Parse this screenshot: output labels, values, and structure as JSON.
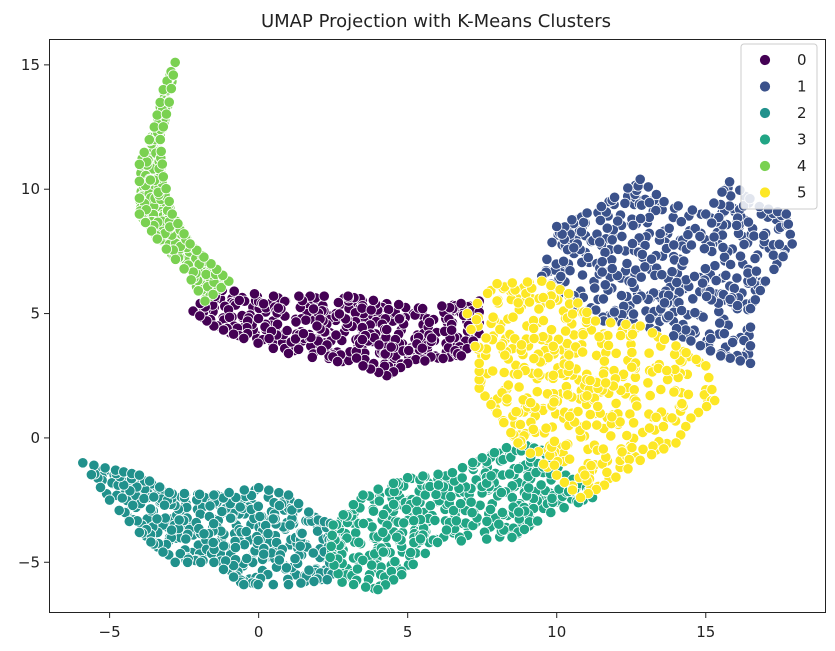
{
  "chart_data": {
    "type": "scatter",
    "title": "UMAP Projection with K-Means Clusters",
    "xlabel": "",
    "ylabel": "",
    "xlim": [
      -7,
      19
    ],
    "ylim": [
      -7,
      16
    ],
    "x_ticks": [
      -5,
      0,
      5,
      10,
      15
    ],
    "y_ticks": [
      -5,
      0,
      5,
      10,
      15
    ],
    "grid": false,
    "legend_position": "top-right",
    "series": [
      {
        "name": "0",
        "color": "#440154",
        "outline": [
          [
            -2.2,
            5.1
          ],
          [
            -1.5,
            6.0
          ],
          [
            0.5,
            5.7
          ],
          [
            3.0,
            5.7
          ],
          [
            5.5,
            5.2
          ],
          [
            7.4,
            5.5
          ],
          [
            7.4,
            4.2
          ],
          [
            6.8,
            3.3
          ],
          [
            5.0,
            3.0
          ],
          [
            4.3,
            2.5
          ],
          [
            3.5,
            2.9
          ],
          [
            1.0,
            3.4
          ],
          [
            -0.5,
            4.0
          ],
          [
            -1.5,
            4.5
          ]
        ]
      },
      {
        "name": "1",
        "color": "#3b528b",
        "outline": [
          [
            9.5,
            6.5
          ],
          [
            10.0,
            8.5
          ],
          [
            11.5,
            9.3
          ],
          [
            12.8,
            10.4
          ],
          [
            13.6,
            9.5
          ],
          [
            15.0,
            9.0
          ],
          [
            15.8,
            10.3
          ],
          [
            16.8,
            9.3
          ],
          [
            17.7,
            9.0
          ],
          [
            17.9,
            7.8
          ],
          [
            17.0,
            6.3
          ],
          [
            16.5,
            5.2
          ],
          [
            16.5,
            3.0
          ],
          [
            15.5,
            3.3
          ],
          [
            14.5,
            3.9
          ],
          [
            12.8,
            4.5
          ],
          [
            11.0,
            4.8
          ],
          [
            10.5,
            5.5
          ]
        ]
      },
      {
        "name": "2",
        "color": "#21918c",
        "outline": [
          [
            -5.9,
            -1.0
          ],
          [
            -4.8,
            -1.3
          ],
          [
            -4.0,
            -1.5
          ],
          [
            -3.0,
            -2.2
          ],
          [
            -1.5,
            -2.3
          ],
          [
            0.0,
            -2.0
          ],
          [
            1.0,
            -2.3
          ],
          [
            2.0,
            -3.3
          ],
          [
            2.6,
            -3.5
          ],
          [
            2.8,
            -5.0
          ],
          [
            2.3,
            -5.7
          ],
          [
            1.0,
            -5.9
          ],
          [
            -0.5,
            -5.9
          ],
          [
            -1.5,
            -5.0
          ],
          [
            -2.8,
            -5.0
          ],
          [
            -4.0,
            -3.8
          ],
          [
            -5.0,
            -2.5
          ]
        ]
      },
      {
        "name": "3",
        "color": "#21a585",
        "outline": [
          [
            2.5,
            -3.5
          ],
          [
            3.5,
            -2.3
          ],
          [
            5.0,
            -1.6
          ],
          [
            6.5,
            -1.4
          ],
          [
            7.5,
            -0.8
          ],
          [
            8.7,
            -0.2
          ],
          [
            9.5,
            -0.5
          ],
          [
            10.3,
            -1.5
          ],
          [
            11.0,
            -2.0
          ],
          [
            11.2,
            -2.4
          ],
          [
            9.8,
            -3.0
          ],
          [
            8.5,
            -4.0
          ],
          [
            6.0,
            -4.2
          ],
          [
            4.8,
            -5.5
          ],
          [
            4.0,
            -6.1
          ],
          [
            2.8,
            -5.8
          ],
          [
            2.4,
            -4.8
          ]
        ]
      },
      {
        "name": "4",
        "color": "#7ad151",
        "outline": [
          [
            -2.8,
            15.1
          ],
          [
            -3.2,
            14.0
          ],
          [
            -3.5,
            12.5
          ],
          [
            -4.0,
            11.0
          ],
          [
            -4.0,
            9.0
          ],
          [
            -3.4,
            8.0
          ],
          [
            -2.5,
            6.8
          ],
          [
            -1.8,
            5.5
          ],
          [
            -1.0,
            6.3
          ],
          [
            -1.6,
            7.0
          ],
          [
            -2.3,
            7.8
          ],
          [
            -2.9,
            9.0
          ],
          [
            -3.2,
            10.5
          ],
          [
            -3.3,
            12.0
          ],
          [
            -3.0,
            13.5
          ]
        ]
      },
      {
        "name": "5",
        "color": "#fde725",
        "outline": [
          [
            7.0,
            5.0
          ],
          [
            8.0,
            6.2
          ],
          [
            9.5,
            6.3
          ],
          [
            10.4,
            5.8
          ],
          [
            11.3,
            4.7
          ],
          [
            12.8,
            4.5
          ],
          [
            14.0,
            3.7
          ],
          [
            15.0,
            2.9
          ],
          [
            15.3,
            1.5
          ],
          [
            14.5,
            0.8
          ],
          [
            14.0,
            -0.2
          ],
          [
            12.8,
            -0.9
          ],
          [
            11.6,
            -1.9
          ],
          [
            10.8,
            -2.4
          ],
          [
            10.0,
            -1.5
          ],
          [
            8.7,
            -0.2
          ],
          [
            8.0,
            1.0
          ],
          [
            7.4,
            2.0
          ],
          [
            7.4,
            3.0
          ]
        ]
      }
    ]
  }
}
